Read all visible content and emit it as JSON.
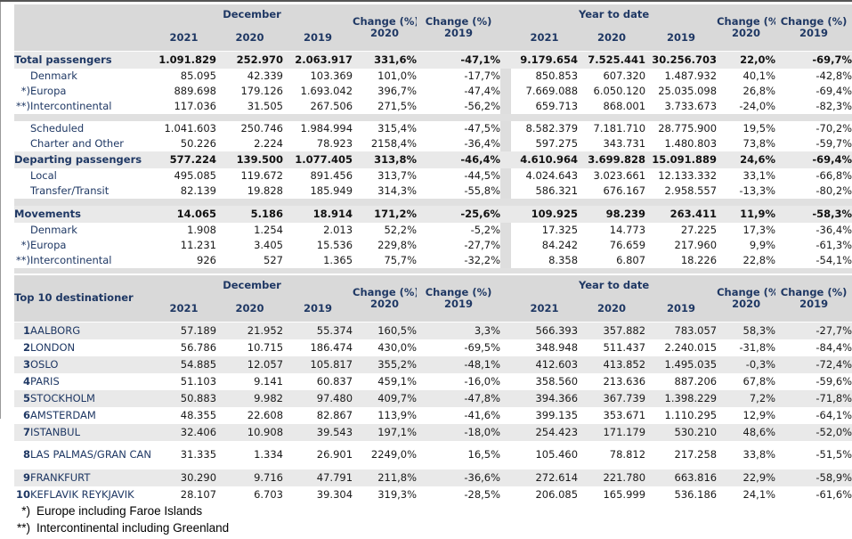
{
  "colors": {
    "accent_text": "#1f3864",
    "header_bg": "#d9d9d9",
    "band_bg": "#e9e9e9",
    "spacer_bg": "#e0e0e0",
    "gap_bg": "#dedede",
    "number_text": "#1a1a1a"
  },
  "headers": {
    "december": "December",
    "year_to_date": "Year to date",
    "y2021": "2021",
    "y2020": "2020",
    "y2019": "2019",
    "change_pct": "Change (%)"
  },
  "traffic_table": {
    "rows": [
      {
        "kind": "section",
        "marker": "",
        "label": "Total passengers",
        "dec": [
          "1.091.829",
          "252.970",
          "2.063.917",
          "331,6%",
          "-47,1%"
        ],
        "ytd": [
          "9.179.654",
          "7.525.441",
          "30.256.703",
          "22,0%",
          "-69,7%"
        ]
      },
      {
        "kind": "sub",
        "marker": "",
        "label": "Denmark",
        "dec": [
          "85.095",
          "42.339",
          "103.369",
          "101,0%",
          "-17,7%"
        ],
        "ytd": [
          "850.853",
          "607.320",
          "1.487.932",
          "40,1%",
          "-42,8%"
        ]
      },
      {
        "kind": "sub",
        "marker": "*)",
        "label": "Europa",
        "dec": [
          "889.698",
          "179.126",
          "1.693.042",
          "396,7%",
          "-47,4%"
        ],
        "ytd": [
          "7.669.088",
          "6.050.120",
          "25.035.098",
          "26,8%",
          "-69,4%"
        ]
      },
      {
        "kind": "sub",
        "marker": "**)",
        "label": "Intercontinental",
        "dec": [
          "117.036",
          "31.505",
          "267.506",
          "271,5%",
          "-56,2%"
        ],
        "ytd": [
          "659.713",
          "868.001",
          "3.733.673",
          "-24,0%",
          "-82,3%"
        ]
      },
      {
        "kind": "spacer"
      },
      {
        "kind": "sub",
        "marker": "",
        "label": "Scheduled",
        "dec": [
          "1.041.603",
          "250.746",
          "1.984.994",
          "315,4%",
          "-47,5%"
        ],
        "ytd": [
          "8.582.379",
          "7.181.710",
          "28.775.900",
          "19,5%",
          "-70,2%"
        ]
      },
      {
        "kind": "sub",
        "marker": "",
        "label": "Charter and Other",
        "dec": [
          "50.226",
          "2.224",
          "78.923",
          "2158,4%",
          "-36,4%"
        ],
        "ytd": [
          "597.275",
          "343.731",
          "1.480.803",
          "73,8%",
          "-59,7%"
        ]
      },
      {
        "kind": "section",
        "marker": "",
        "label": "Departing passengers",
        "dec": [
          "577.224",
          "139.500",
          "1.077.405",
          "313,8%",
          "-46,4%"
        ],
        "ytd": [
          "4.610.964",
          "3.699.828",
          "15.091.889",
          "24,6%",
          "-69,4%"
        ]
      },
      {
        "kind": "sub",
        "marker": "",
        "label": "Local",
        "dec": [
          "495.085",
          "119.672",
          "891.456",
          "313,7%",
          "-44,5%"
        ],
        "ytd": [
          "4.024.643",
          "3.023.661",
          "12.133.332",
          "33,1%",
          "-66,8%"
        ]
      },
      {
        "kind": "sub",
        "marker": "",
        "label": "Transfer/Transit",
        "dec": [
          "82.139",
          "19.828",
          "185.949",
          "314,3%",
          "-55,8%"
        ],
        "ytd": [
          "586.321",
          "676.167",
          "2.958.557",
          "-13,3%",
          "-80,2%"
        ]
      },
      {
        "kind": "spacer"
      },
      {
        "kind": "section",
        "marker": "",
        "label": "Movements",
        "dec": [
          "14.065",
          "5.186",
          "18.914",
          "171,2%",
          "-25,6%"
        ],
        "ytd": [
          "109.925",
          "98.239",
          "263.411",
          "11,9%",
          "-58,3%"
        ]
      },
      {
        "kind": "sub",
        "marker": "",
        "label": "Denmark",
        "dec": [
          "1.908",
          "1.254",
          "2.013",
          "52,2%",
          "-5,2%"
        ],
        "ytd": [
          "17.325",
          "14.773",
          "27.225",
          "17,3%",
          "-36,4%"
        ]
      },
      {
        "kind": "sub",
        "marker": "*)",
        "label": "Europa",
        "dec": [
          "11.231",
          "3.405",
          "15.536",
          "229,8%",
          "-27,7%"
        ],
        "ytd": [
          "84.242",
          "76.659",
          "217.960",
          "9,9%",
          "-61,3%"
        ]
      },
      {
        "kind": "sub",
        "marker": "**)",
        "label": "Intercontinental",
        "dec": [
          "926",
          "527",
          "1.365",
          "75,7%",
          "-32,2%"
        ],
        "ytd": [
          "8.358",
          "6.807",
          "18.226",
          "22,8%",
          "-54,1%"
        ]
      },
      {
        "kind": "spacer",
        "last": true
      }
    ]
  },
  "top10_table": {
    "title": "Top 10 destinationer",
    "rows": [
      {
        "rank": "1",
        "label": "AALBORG",
        "dec": [
          "57.189",
          "21.952",
          "55.374",
          "160,5%",
          "3,3%"
        ],
        "ytd": [
          "566.393",
          "357.882",
          "783.057",
          "58,3%",
          "-27,7%"
        ]
      },
      {
        "rank": "2",
        "label": "LONDON",
        "dec": [
          "56.786",
          "10.715",
          "186.474",
          "430,0%",
          "-69,5%"
        ],
        "ytd": [
          "348.948",
          "511.437",
          "2.240.015",
          "-31,8%",
          "-84,4%"
        ]
      },
      {
        "rank": "3",
        "label": "OSLO",
        "dec": [
          "54.885",
          "12.057",
          "105.817",
          "355,2%",
          "-48,1%"
        ],
        "ytd": [
          "412.603",
          "413.852",
          "1.495.035",
          "-0,3%",
          "-72,4%"
        ]
      },
      {
        "rank": "4",
        "label": "PARIS",
        "dec": [
          "51.103",
          "9.141",
          "60.837",
          "459,1%",
          "-16,0%"
        ],
        "ytd": [
          "358.560",
          "213.636",
          "887.206",
          "67,8%",
          "-59,6%"
        ]
      },
      {
        "rank": "5",
        "label": "STOCKHOLM",
        "dec": [
          "50.883",
          "9.982",
          "97.480",
          "409,7%",
          "-47,8%"
        ],
        "ytd": [
          "394.366",
          "367.739",
          "1.398.229",
          "7,2%",
          "-71,8%"
        ]
      },
      {
        "rank": "6",
        "label": "AMSTERDAM",
        "dec": [
          "48.355",
          "22.608",
          "82.867",
          "113,9%",
          "-41,6%"
        ],
        "ytd": [
          "399.135",
          "353.671",
          "1.110.295",
          "12,9%",
          "-64,1%"
        ]
      },
      {
        "rank": "7",
        "label": "ISTANBUL",
        "dec": [
          "32.406",
          "10.908",
          "39.543",
          "197,1%",
          "-18,0%"
        ],
        "ytd": [
          "254.423",
          "171.179",
          "530.210",
          "48,6%",
          "-52,0%"
        ]
      },
      {
        "rank": "8",
        "label": "LAS PALMAS/GRAN CANARIA",
        "tall": true,
        "dec": [
          "31.335",
          "1.334",
          "26.901",
          "2249,0%",
          "16,5%"
        ],
        "ytd": [
          "105.460",
          "78.812",
          "217.258",
          "33,8%",
          "-51,5%"
        ]
      },
      {
        "rank": "9",
        "label": "FRANKFURT",
        "dec": [
          "30.290",
          "9.716",
          "47.791",
          "211,8%",
          "-36,6%"
        ],
        "ytd": [
          "272.614",
          "221.780",
          "663.816",
          "22,9%",
          "-58,9%"
        ]
      },
      {
        "rank": "10",
        "label": "KEFLAVIK REYKJAVIK",
        "dec": [
          "28.107",
          "6.703",
          "39.304",
          "319,3%",
          "-28,5%"
        ],
        "ytd": [
          "206.085",
          "165.999",
          "536.186",
          "24,1%",
          "-61,6%"
        ]
      }
    ]
  },
  "footnotes": [
    {
      "marker": "*)",
      "text": "Europe including Faroe Islands"
    },
    {
      "marker": "**)",
      "text": "Intercontinental including Greenland"
    }
  ]
}
